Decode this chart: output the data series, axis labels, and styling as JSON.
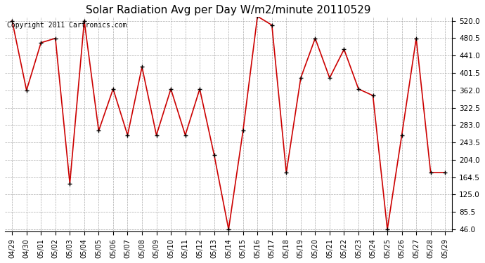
{
  "title": "Solar Radiation Avg per Day W/m2/minute 20110529",
  "copyright": "Copyright 2011 Cartronics.com",
  "dates": [
    "04/29",
    "04/30",
    "05/01",
    "05/02",
    "05/03",
    "05/04",
    "05/05",
    "05/06",
    "05/07",
    "05/08",
    "05/09",
    "05/10",
    "05/11",
    "05/12",
    "05/13",
    "05/14",
    "05/15",
    "05/16",
    "05/17",
    "05/18",
    "05/19",
    "05/20",
    "05/21",
    "05/22",
    "05/23",
    "05/24",
    "05/25",
    "05/26",
    "05/27",
    "05/28",
    "05/29"
  ],
  "values": [
    520,
    362,
    470,
    480,
    150,
    520,
    270,
    365,
    260,
    415,
    260,
    365,
    260,
    365,
    215,
    46,
    270,
    530,
    510,
    175,
    390,
    480,
    390,
    455,
    365,
    350,
    46,
    260,
    480,
    175,
    175
  ],
  "line_color": "#cc0000",
  "bg_color": "#ffffff",
  "grid_color": "#aaaaaa",
  "yticks": [
    46.0,
    85.5,
    125.0,
    164.5,
    204.0,
    243.5,
    283.0,
    322.5,
    362.0,
    401.5,
    441.0,
    480.5,
    520.0
  ],
  "ymin": 46.0,
  "ymax": 520.0,
  "title_fontsize": 11,
  "copyright_fontsize": 7,
  "figwidth": 6.9,
  "figheight": 3.75,
  "dpi": 100
}
